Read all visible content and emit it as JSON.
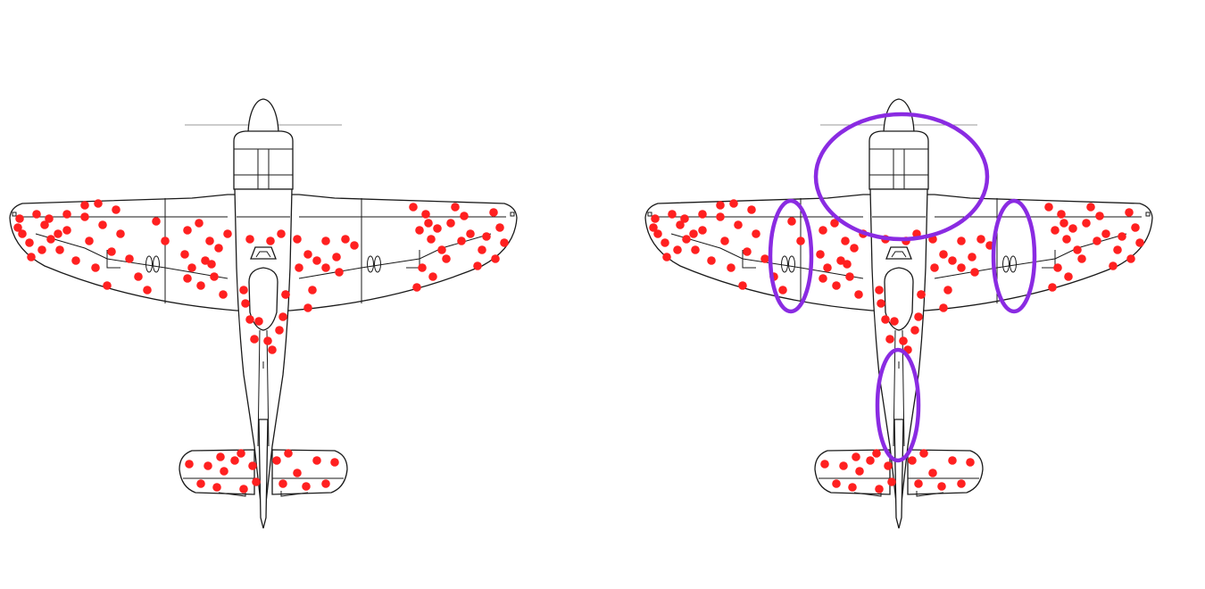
{
  "colors": {
    "background": "#ffffff",
    "outline": "#1a1a1a",
    "bullet_hole": "#ff2020",
    "highlight_ring": "#8a2be2"
  },
  "panels": [
    {
      "id": "left",
      "content": "aircraft-with-bullet-holes"
    },
    {
      "id": "right",
      "content": "aircraft-with-bullet-holes-and-highlighted-undamaged-regions"
    }
  ],
  "highlighted_regions": [
    "engine",
    "left-wing-mid-section",
    "right-wing-mid-section",
    "rear-fuselage"
  ],
  "icons": {
    "aircraft": "fighter-plane-top-view-icon",
    "hole": "bullet-hole-dot-icon",
    "ring": "highlight-ellipse-icon"
  }
}
